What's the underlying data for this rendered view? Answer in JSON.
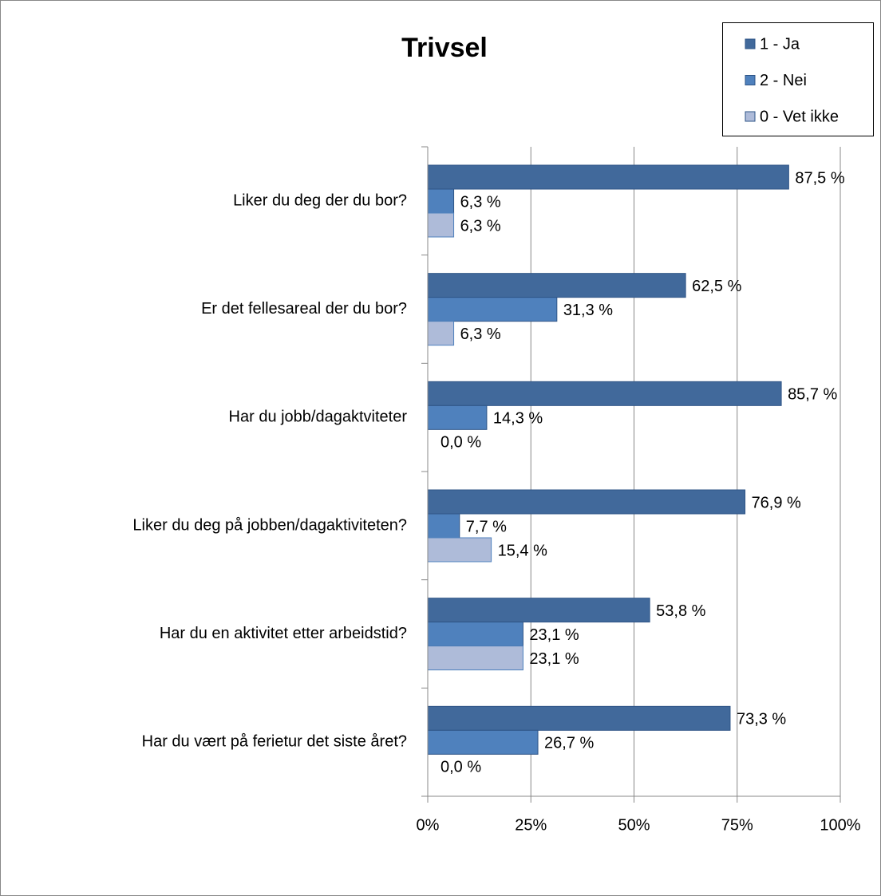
{
  "chart_data": {
    "type": "bar",
    "orientation": "horizontal",
    "title": "Trivsel",
    "categories": [
      "Liker du deg der du bor?",
      "Er det fellesareal der du bor?",
      "Har du jobb/dagaktviteter",
      "Liker du deg på jobben/dagaktiviteten?",
      "Har du en aktivitet etter arbeidstid?",
      "Har du vært på ferietur det siste året?"
    ],
    "series": [
      {
        "name": "1 - Ja",
        "color": "#41699b",
        "values": [
          87.5,
          62.5,
          85.7,
          76.9,
          53.8,
          73.3
        ],
        "value_labels": [
          "87,5 %",
          "62,5 %",
          "85,7 %",
          "76,9 %",
          "53,8 %",
          "73,3 %"
        ]
      },
      {
        "name": "2 - Nei",
        "color": "#4f81bd",
        "values": [
          6.3,
          31.3,
          14.3,
          7.7,
          23.1,
          26.7
        ],
        "value_labels": [
          "6,3 %",
          "31,3 %",
          "14,3 %",
          "7,7 %",
          "23,1 %",
          "26,7 %"
        ]
      },
      {
        "name": "0 - Vet ikke",
        "color": "#aebbd9",
        "values": [
          6.3,
          6.3,
          0.0,
          15.4,
          23.1,
          0.0
        ],
        "value_labels": [
          "6,3 %",
          "6,3 %",
          "0,0 %",
          "15,4 %",
          "23,1 %",
          "0,0 %"
        ]
      }
    ],
    "xlim": [
      0,
      100
    ],
    "xticks": [
      {
        "value": 0,
        "label": "0%"
      },
      {
        "value": 25,
        "label": "25%"
      },
      {
        "value": 50,
        "label": "50%"
      },
      {
        "value": 75,
        "label": "75%"
      },
      {
        "value": 100,
        "label": "100%"
      }
    ],
    "grid": true,
    "legend": "top-right"
  }
}
